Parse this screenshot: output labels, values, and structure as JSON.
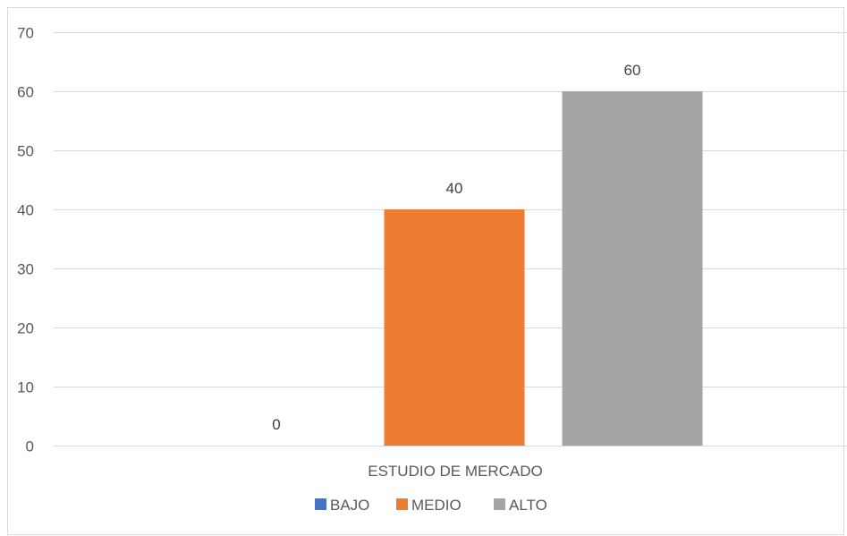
{
  "chart_data": {
    "type": "bar",
    "categories": [
      "ESTUDIO DE MERCADO"
    ],
    "series": [
      {
        "name": "BAJO",
        "values": [
          0
        ],
        "color": "#4472c4"
      },
      {
        "name": "MEDIO",
        "values": [
          40
        ],
        "color": "#ed7d31"
      },
      {
        "name": "ALTO",
        "values": [
          60
        ],
        "color": "#a5a5a5"
      }
    ],
    "ylim": [
      0,
      70
    ],
    "yticks": [
      0,
      10,
      20,
      30,
      40,
      50,
      60,
      70
    ],
    "grid": true,
    "legend": "bottom",
    "data_labels": true
  }
}
